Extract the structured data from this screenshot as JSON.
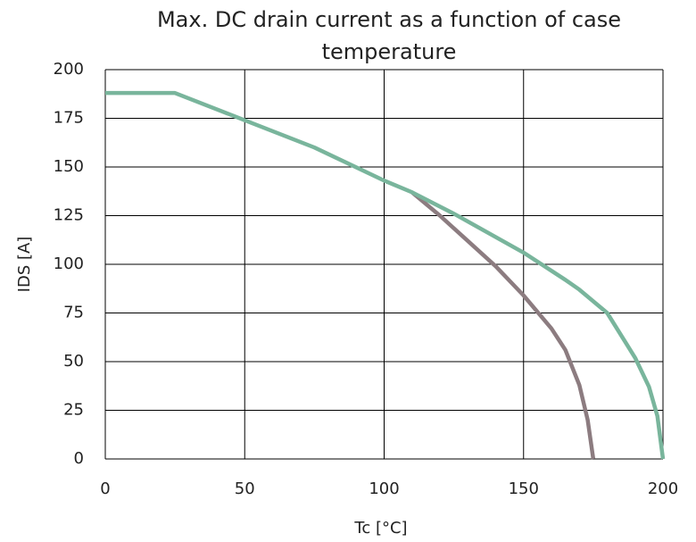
{
  "chart_data": {
    "type": "line",
    "title": "Max. DC drain current as a function of case temperature",
    "x_label": "Tc [°C]",
    "y_label": "IDS [A]",
    "xlim": [
      0,
      200
    ],
    "xticks": [
      0,
      50,
      100,
      150,
      200
    ],
    "ylim": [
      0,
      200
    ],
    "yticks": [
      0,
      25,
      50,
      75,
      100,
      125,
      150,
      175,
      200
    ],
    "grid": true,
    "series": [
      {
        "color": "#8c7c80",
        "x": [
          110,
          120,
          130,
          140,
          150,
          160,
          165,
          170,
          173,
          175
        ],
        "values": [
          137,
          125,
          112,
          99,
          84,
          67,
          56,
          38,
          20,
          0
        ]
      },
      {
        "color": "#79b59c",
        "x": [
          0,
          25,
          50,
          75,
          100,
          110,
          125,
          150,
          165,
          170,
          180,
          190,
          195,
          198,
          200
        ],
        "values": [
          188,
          188,
          174,
          160,
          143,
          137,
          126,
          106,
          92,
          87,
          75,
          52,
          37,
          22,
          0
        ]
      }
    ]
  }
}
